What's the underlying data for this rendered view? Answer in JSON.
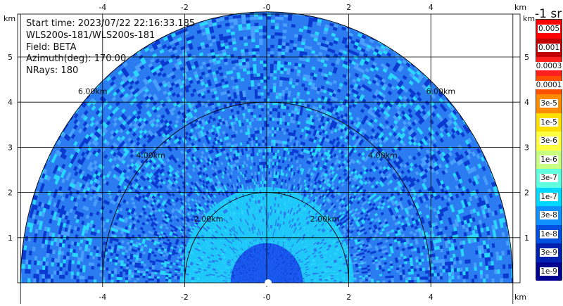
{
  "info": {
    "start_time": "Start time: 2023/07/22 22:16:33.185",
    "instrument": "WLS200s-181/WLS200s-181",
    "field": "Field: BETA",
    "azimuth": "Azimuth(deg): 170.00",
    "nrays": "NRays: 180"
  },
  "axis_units": {
    "x_top": "km",
    "x_bottom": "km",
    "y_left": "km",
    "y_right": "km"
  },
  "colorbar": {
    "units": "-1 sr",
    "labels": [
      "0.005",
      "0.001",
      "0.0003",
      "0.0001",
      "3e-5",
      "1e-5",
      "3e-6",
      "1e-6",
      "3e-7",
      "1e-7",
      "3e-8",
      "1e-8",
      "3e-9",
      "1e-9"
    ],
    "colors": [
      "#ff0000",
      "#c00000",
      "#ff2020",
      "#ff5000",
      "#ff8c00",
      "#ffe000",
      "#ffff40",
      "#c8ff80",
      "#60ffe0",
      "#00d8ff",
      "#1090ff",
      "#0050e0",
      "#0020b0",
      "#000090"
    ],
    "top_color": "#a00000"
  },
  "chart_data": {
    "type": "heatmap",
    "title": "",
    "xlabel": "km",
    "ylabel": "km",
    "xlim": [
      -6.1,
      6.1
    ],
    "ylim": [
      0,
      6.0
    ],
    "x_ticks": [
      -4,
      -2,
      0,
      2,
      4
    ],
    "x_tick_labels": [
      "-4",
      "-2",
      "-0",
      "2",
      "4"
    ],
    "y_ticks": [
      1,
      2,
      3,
      4,
      5
    ],
    "y_tick_labels": [
      "1",
      "2",
      "3",
      "4",
      "5"
    ],
    "grid": true,
    "max_range_km": 6.0,
    "range_rings_km": [
      2,
      4,
      6
    ],
    "range_ring_labels": [
      "2.00km",
      "4.00km",
      "6.00km"
    ],
    "scan_type": "RHI-like semicircle scan",
    "colors": {
      "far_field": "#2a7cf0",
      "mid_field": "#1ec8f8",
      "near_core": "#1a5af0",
      "cyan_speckle": "#2ad8ff",
      "dark_speckle": "#0a3ad0"
    }
  }
}
